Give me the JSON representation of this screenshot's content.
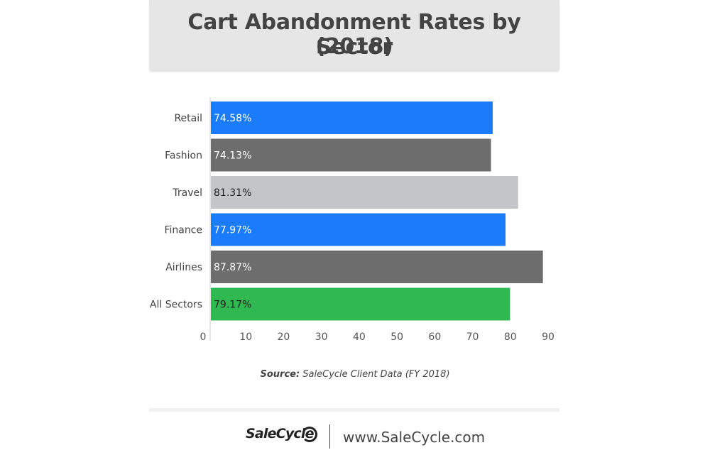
{
  "chart_data": {
    "type": "bar",
    "orientation": "horizontal",
    "title_lines": [
      "Cart Abandonment Rates by Sector",
      "(2018)"
    ],
    "categories": [
      "Retail",
      "Fashion",
      "Travel",
      "Finance",
      "Airlines",
      "All Sectors"
    ],
    "values": [
      74.58,
      74.13,
      81.31,
      77.97,
      87.87,
      79.17
    ],
    "value_labels": [
      "74.58%",
      "74.13%",
      "81.31%",
      "77.97%",
      "87.87%",
      "79.17%"
    ],
    "colors": [
      "#1a7cfa",
      "#6d6d6d",
      "#c3c5c8",
      "#1a7cfa",
      "#6d6d6d",
      "#2fb950"
    ],
    "label_colors": [
      "#ffffff",
      "#ffffff",
      "#222222",
      "#ffffff",
      "#ffffff",
      "#222222"
    ],
    "xlim": [
      0,
      90
    ],
    "xticks": [
      0,
      10,
      20,
      30,
      40,
      50,
      60,
      70,
      80,
      90
    ],
    "grid": false
  },
  "source": {
    "label": "Source:",
    "text": " SaleCycle Client Data (FY 2018)"
  },
  "footer": {
    "brand": "SaleCycle",
    "url": "www.SaleCycle.com"
  }
}
